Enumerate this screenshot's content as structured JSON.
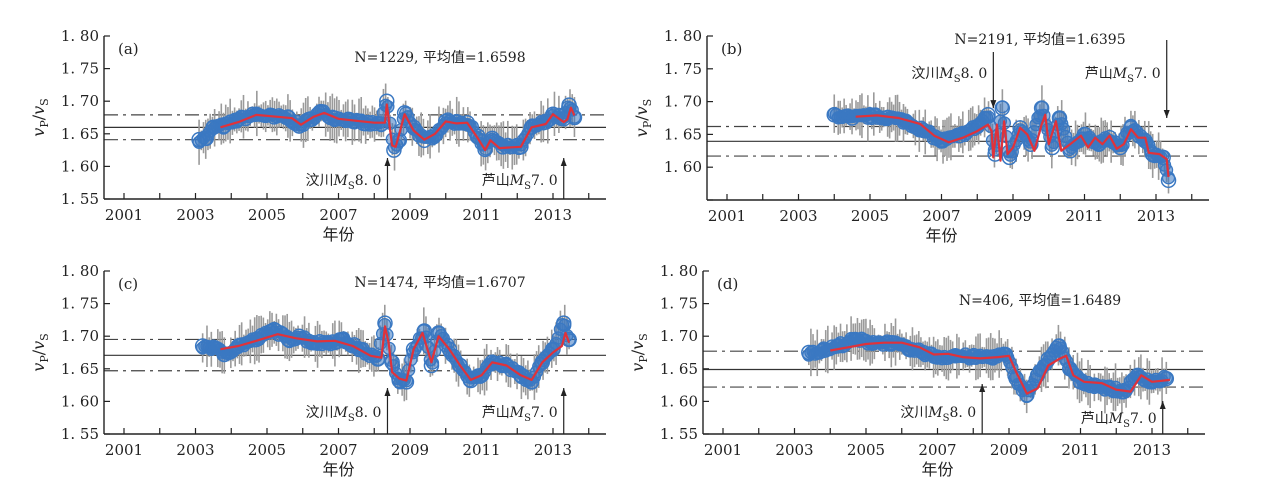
{
  "colors": {
    "circle": "#3a78c2",
    "smooth": "#e0323a",
    "errorbar": "#9a9a9a",
    "axis": "#222222",
    "mean_line": "#333333",
    "sigma_line": "#444444"
  },
  "chart_data": [
    {
      "type": "scatter",
      "panel": "(a)",
      "n_label": "N=1229, 平均值=1.6598",
      "N": 1229,
      "mean": 1.6598,
      "sigma_band": [
        1.641,
        1.679
      ],
      "xlabel": "年份",
      "ylabel": "vP/vS",
      "xlim": [
        2000.5,
        2014
      ],
      "ylim": [
        1.55,
        1.8
      ],
      "xticks": [
        "2001",
        "2003",
        "2005",
        "2007",
        "2009",
        "2011",
        "2013"
      ],
      "yticks": [
        "1.55",
        "1.60",
        "1.65",
        "1.70",
        "1.75",
        "1.80"
      ],
      "events": [
        {
          "label": "汶川",
          "mag": "8.0",
          "year": 2008.37,
          "arrow": "up",
          "text_pos": "left"
        },
        {
          "label": "芦山",
          "mag": "7.0",
          "year": 2013.3,
          "arrow": "up",
          "text_pos": "left"
        }
      ],
      "series_points": [
        [
          2003.1,
          1.641
        ],
        [
          2003.3,
          1.643
        ],
        [
          2003.5,
          1.66
        ],
        [
          2003.8,
          1.662
        ],
        [
          2004.2,
          1.672
        ],
        [
          2004.7,
          1.68
        ],
        [
          2005.2,
          1.676
        ],
        [
          2005.6,
          1.675
        ],
        [
          2005.9,
          1.662
        ],
        [
          2006.2,
          1.672
        ],
        [
          2006.5,
          1.684
        ],
        [
          2006.9,
          1.674
        ],
        [
          2007.3,
          1.672
        ],
        [
          2007.7,
          1.666
        ],
        [
          2008.2,
          1.665
        ],
        [
          2008.35,
          1.7
        ],
        [
          2008.55,
          1.625
        ],
        [
          2008.7,
          1.64
        ],
        [
          2008.85,
          1.682
        ],
        [
          2009.1,
          1.66
        ],
        [
          2009.4,
          1.64
        ],
        [
          2009.7,
          1.648
        ],
        [
          2010.0,
          1.669
        ],
        [
          2010.3,
          1.668
        ],
        [
          2010.6,
          1.667
        ],
        [
          2010.9,
          1.646
        ],
        [
          2011.1,
          1.626
        ],
        [
          2011.3,
          1.643
        ],
        [
          2011.6,
          1.63
        ],
        [
          2012.1,
          1.63
        ],
        [
          2012.4,
          1.66
        ],
        [
          2012.8,
          1.668
        ],
        [
          2013.0,
          1.68
        ],
        [
          2013.3,
          1.673
        ],
        [
          2013.45,
          1.694
        ],
        [
          2013.6,
          1.675
        ]
      ],
      "smooth": [
        [
          2003.7,
          1.66
        ],
        [
          2004.2,
          1.668
        ],
        [
          2004.7,
          1.679
        ],
        [
          2005.3,
          1.676
        ],
        [
          2005.7,
          1.674
        ],
        [
          2005.95,
          1.664
        ],
        [
          2006.3,
          1.676
        ],
        [
          2006.6,
          1.682
        ],
        [
          2007.0,
          1.673
        ],
        [
          2007.5,
          1.67
        ],
        [
          2008.0,
          1.667
        ],
        [
          2008.3,
          1.667
        ],
        [
          2008.35,
          1.695
        ],
        [
          2008.5,
          1.632
        ],
        [
          2008.6,
          1.63
        ],
        [
          2008.85,
          1.68
        ],
        [
          2009.1,
          1.655
        ],
        [
          2009.4,
          1.641
        ],
        [
          2009.7,
          1.65
        ],
        [
          2010.0,
          1.669
        ],
        [
          2010.3,
          1.666
        ],
        [
          2010.6,
          1.667
        ],
        [
          2010.9,
          1.643
        ],
        [
          2011.1,
          1.625
        ],
        [
          2011.25,
          1.64
        ],
        [
          2011.5,
          1.628
        ],
        [
          2012.1,
          1.63
        ],
        [
          2012.4,
          1.66
        ],
        [
          2012.8,
          1.665
        ],
        [
          2013.0,
          1.68
        ],
        [
          2013.3,
          1.668
        ],
        [
          2013.4,
          1.672
        ],
        [
          2013.5,
          1.69
        ],
        [
          2013.6,
          1.678
        ]
      ]
    },
    {
      "type": "scatter",
      "panel": "(b)",
      "n_label": "N=2191, 平均值=1.6395",
      "N": 2191,
      "mean": 1.6395,
      "sigma_band": [
        1.617,
        1.662
      ],
      "xlabel": "年份",
      "ylabel": "vP/vS",
      "xlim": [
        2000.5,
        2014
      ],
      "ylim": [
        1.55,
        1.8
      ],
      "xticks": [
        "2001",
        "2003",
        "2005",
        "2007",
        "2009",
        "2011",
        "2013"
      ],
      "yticks": [
        "1.60",
        "1.65",
        "1.70",
        "1.75",
        "1.80"
      ],
      "events": [
        {
          "label": "汶川",
          "mag": "8.0",
          "year": 2008.45,
          "arrow": "down",
          "text_pos": "left"
        },
        {
          "label": "芦山",
          "mag": "7.0",
          "year": 2013.3,
          "arrow": "down",
          "text_pos": "left"
        }
      ],
      "series_points": [
        [
          2004.0,
          1.68
        ],
        [
          2004.5,
          1.675
        ],
        [
          2005.0,
          1.678
        ],
        [
          2005.5,
          1.676
        ],
        [
          2006.0,
          1.67
        ],
        [
          2006.5,
          1.656
        ],
        [
          2007.0,
          1.64
        ],
        [
          2007.5,
          1.648
        ],
        [
          2008.0,
          1.662
        ],
        [
          2008.3,
          1.68
        ],
        [
          2008.5,
          1.62
        ],
        [
          2008.7,
          1.69
        ],
        [
          2008.9,
          1.615
        ],
        [
          2009.2,
          1.66
        ],
        [
          2009.5,
          1.635
        ],
        [
          2009.8,
          1.69
        ],
        [
          2010.1,
          1.63
        ],
        [
          2010.3,
          1.675
        ],
        [
          2010.6,
          1.625
        ],
        [
          2011.0,
          1.65
        ],
        [
          2011.4,
          1.635
        ],
        [
          2011.7,
          1.645
        ],
        [
          2012.0,
          1.63
        ],
        [
          2012.3,
          1.66
        ],
        [
          2012.7,
          1.64
        ],
        [
          2012.9,
          1.62
        ],
        [
          2013.2,
          1.615
        ],
        [
          2013.35,
          1.58
        ]
      ],
      "smooth": [
        [
          2004.6,
          1.677
        ],
        [
          2005.2,
          1.679
        ],
        [
          2005.8,
          1.675
        ],
        [
          2006.4,
          1.666
        ],
        [
          2006.8,
          1.648
        ],
        [
          2007.2,
          1.638
        ],
        [
          2007.6,
          1.645
        ],
        [
          2008.0,
          1.655
        ],
        [
          2008.3,
          1.665
        ],
        [
          2008.4,
          1.655
        ],
        [
          2008.45,
          1.615
        ],
        [
          2008.55,
          1.665
        ],
        [
          2008.65,
          1.61
        ],
        [
          2008.75,
          1.67
        ],
        [
          2008.85,
          1.62
        ],
        [
          2009.0,
          1.63
        ],
        [
          2009.2,
          1.66
        ],
        [
          2009.4,
          1.65
        ],
        [
          2009.6,
          1.625
        ],
        [
          2009.8,
          1.665
        ],
        [
          2009.9,
          1.68
        ],
        [
          2010.0,
          1.635
        ],
        [
          2010.2,
          1.67
        ],
        [
          2010.35,
          1.625
        ],
        [
          2010.6,
          1.635
        ],
        [
          2010.9,
          1.648
        ],
        [
          2011.1,
          1.63
        ],
        [
          2011.3,
          1.645
        ],
        [
          2011.5,
          1.635
        ],
        [
          2011.7,
          1.648
        ],
        [
          2011.9,
          1.628
        ],
        [
          2012.1,
          1.635
        ],
        [
          2012.3,
          1.658
        ],
        [
          2012.5,
          1.645
        ],
        [
          2012.7,
          1.645
        ],
        [
          2012.8,
          1.622
        ],
        [
          2013.1,
          1.62
        ],
        [
          2013.3,
          1.612
        ],
        [
          2013.35,
          1.585
        ]
      ]
    },
    {
      "type": "scatter",
      "panel": "(c)",
      "n_label": "N=1474, 平均值=1.6707",
      "N": 1474,
      "mean": 1.6707,
      "sigma_band": [
        1.647,
        1.695
      ],
      "xlabel": "年份",
      "ylabel": "vP/vS",
      "xlim": [
        2000.5,
        2014
      ],
      "ylim": [
        1.55,
        1.8
      ],
      "xticks": [
        "2001",
        "2003",
        "2005",
        "2007",
        "2009",
        "2011",
        "2013"
      ],
      "yticks": [
        "1.55",
        "1.60",
        "1.65",
        "1.70",
        "1.75",
        "1.80"
      ],
      "events": [
        {
          "label": "汶川",
          "mag": "8.0",
          "year": 2008.37,
          "arrow": "up",
          "text_pos": "left"
        },
        {
          "label": "芦山",
          "mag": "7.0",
          "year": 2013.3,
          "arrow": "up",
          "text_pos": "left"
        }
      ],
      "series_points": [
        [
          2003.2,
          1.685
        ],
        [
          2003.5,
          1.683
        ],
        [
          2003.8,
          1.672
        ],
        [
          2004.2,
          1.685
        ],
        [
          2004.7,
          1.695
        ],
        [
          2005.2,
          1.71
        ],
        [
          2005.6,
          1.695
        ],
        [
          2005.9,
          1.7
        ],
        [
          2006.3,
          1.69
        ],
        [
          2006.7,
          1.69
        ],
        [
          2007.1,
          1.695
        ],
        [
          2007.6,
          1.68
        ],
        [
          2008.1,
          1.665
        ],
        [
          2008.3,
          1.72
        ],
        [
          2008.5,
          1.66
        ],
        [
          2008.7,
          1.632
        ],
        [
          2008.9,
          1.63
        ],
        [
          2009.1,
          1.68
        ],
        [
          2009.4,
          1.708
        ],
        [
          2009.6,
          1.655
        ],
        [
          2009.8,
          1.705
        ],
        [
          2010.1,
          1.68
        ],
        [
          2010.4,
          1.655
        ],
        [
          2010.7,
          1.632
        ],
        [
          2011.0,
          1.64
        ],
        [
          2011.3,
          1.66
        ],
        [
          2011.7,
          1.655
        ],
        [
          2012.1,
          1.64
        ],
        [
          2012.4,
          1.63
        ],
        [
          2012.7,
          1.66
        ],
        [
          2013.0,
          1.68
        ],
        [
          2013.3,
          1.72
        ],
        [
          2013.45,
          1.695
        ]
      ],
      "smooth": [
        [
          2003.7,
          1.68
        ],
        [
          2004.2,
          1.685
        ],
        [
          2004.7,
          1.693
        ],
        [
          2005.3,
          1.703
        ],
        [
          2005.8,
          1.697
        ],
        [
          2006.4,
          1.692
        ],
        [
          2006.9,
          1.693
        ],
        [
          2007.4,
          1.685
        ],
        [
          2007.9,
          1.67
        ],
        [
          2008.2,
          1.667
        ],
        [
          2008.3,
          1.715
        ],
        [
          2008.4,
          1.69
        ],
        [
          2008.5,
          1.645
        ],
        [
          2008.7,
          1.635
        ],
        [
          2008.9,
          1.632
        ],
        [
          2009.1,
          1.68
        ],
        [
          2009.35,
          1.705
        ],
        [
          2009.6,
          1.66
        ],
        [
          2009.8,
          1.7
        ],
        [
          2010.1,
          1.68
        ],
        [
          2010.4,
          1.655
        ],
        [
          2010.7,
          1.633
        ],
        [
          2011.0,
          1.64
        ],
        [
          2011.3,
          1.66
        ],
        [
          2011.7,
          1.655
        ],
        [
          2012.1,
          1.64
        ],
        [
          2012.4,
          1.633
        ],
        [
          2012.7,
          1.66
        ],
        [
          2013.0,
          1.675
        ],
        [
          2013.25,
          1.685
        ],
        [
          2013.35,
          1.705
        ],
        [
          2013.45,
          1.69
        ]
      ]
    },
    {
      "type": "scatter",
      "panel": "(d)",
      "n_label": "N=406, 平均值=1.6489",
      "N": 406,
      "mean": 1.6489,
      "sigma_band": [
        1.622,
        1.677
      ],
      "xlabel": "年份",
      "ylabel": "vP/vS",
      "xlim": [
        2000.5,
        2014
      ],
      "ylim": [
        1.55,
        1.8
      ],
      "xticks": [
        "2001",
        "2003",
        "2005",
        "2007",
        "2009",
        "2011",
        "2013"
      ],
      "yticks": [
        "1.55",
        "1.60",
        "1.65",
        "1.70",
        "1.75",
        "1.80"
      ],
      "events": [
        {
          "label": "汶川",
          "mag": "8.0",
          "year": 2008.25,
          "arrow": "up",
          "text_pos": "left"
        },
        {
          "label": "芦山",
          "mag": "7.0",
          "year": 2013.3,
          "arrow": "up",
          "text_pos": "left"
        }
      ],
      "series_points": [
        [
          2003.4,
          1.675
        ],
        [
          2003.8,
          1.678
        ],
        [
          2004.2,
          1.685
        ],
        [
          2004.7,
          1.695
        ],
        [
          2005.2,
          1.69
        ],
        [
          2005.7,
          1.69
        ],
        [
          2006.2,
          1.68
        ],
        [
          2006.6,
          1.675
        ],
        [
          2007.0,
          1.668
        ],
        [
          2007.5,
          1.67
        ],
        [
          2008.0,
          1.668
        ],
        [
          2008.5,
          1.668
        ],
        [
          2008.9,
          1.672
        ],
        [
          2009.2,
          1.635
        ],
        [
          2009.5,
          1.61
        ],
        [
          2009.8,
          1.64
        ],
        [
          2010.1,
          1.665
        ],
        [
          2010.4,
          1.685
        ],
        [
          2010.7,
          1.65
        ],
        [
          2011.0,
          1.63
        ],
        [
          2011.4,
          1.625
        ],
        [
          2011.8,
          1.62
        ],
        [
          2012.2,
          1.615
        ],
        [
          2012.6,
          1.64
        ],
        [
          2013.0,
          1.63
        ],
        [
          2013.4,
          1.635
        ]
      ],
      "smooth": [
        [
          2004.0,
          1.678
        ],
        [
          2004.5,
          1.683
        ],
        [
          2005.0,
          1.688
        ],
        [
          2005.5,
          1.69
        ],
        [
          2006.0,
          1.69
        ],
        [
          2006.5,
          1.683
        ],
        [
          2006.9,
          1.672
        ],
        [
          2007.3,
          1.673
        ],
        [
          2007.7,
          1.668
        ],
        [
          2008.2,
          1.666
        ],
        [
          2008.7,
          1.668
        ],
        [
          2009.0,
          1.67
        ],
        [
          2009.2,
          1.645
        ],
        [
          2009.5,
          1.612
        ],
        [
          2009.8,
          1.62
        ],
        [
          2010.1,
          1.655
        ],
        [
          2010.4,
          1.665
        ],
        [
          2010.6,
          1.67
        ],
        [
          2010.8,
          1.64
        ],
        [
          2011.1,
          1.63
        ],
        [
          2011.6,
          1.628
        ],
        [
          2012.0,
          1.618
        ],
        [
          2012.4,
          1.615
        ],
        [
          2012.7,
          1.64
        ],
        [
          2013.0,
          1.63
        ],
        [
          2013.5,
          1.633
        ]
      ]
    }
  ]
}
